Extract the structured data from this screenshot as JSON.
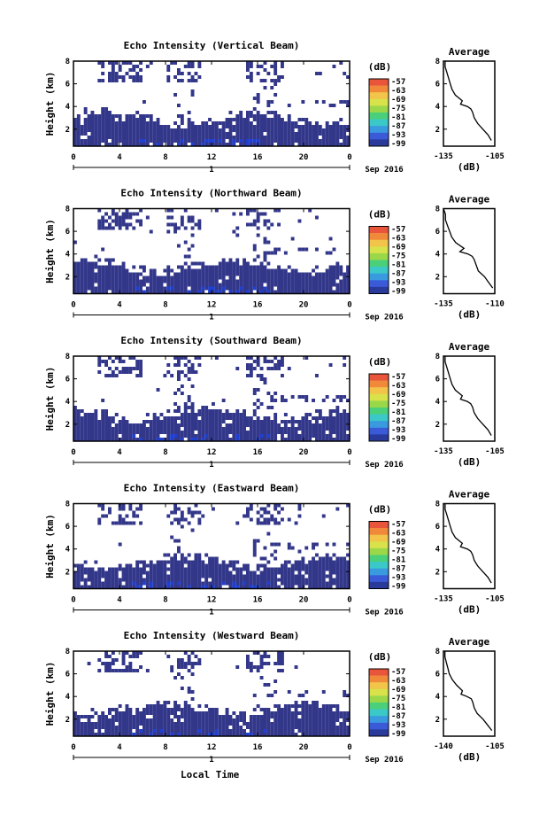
{
  "figure": {
    "xaxis_title": "Local Time",
    "date_label": "Sep 2016",
    "day_label": "1",
    "colorbar_unit": "(dB)",
    "colorbar_ticks": [
      "-57",
      "-63",
      "-69",
      "-75",
      "-81",
      "-87",
      "-93",
      "-99"
    ],
    "colorbar_colors": [
      "#e8553a",
      "#f08a3a",
      "#f2c44a",
      "#d8e24a",
      "#9ad84a",
      "#4ad07a",
      "#3ac8c8",
      "#3a9ae0",
      "#3a5ad8",
      "#2a3a9a"
    ],
    "panel_fill_color": "#33378a",
    "panel_bright_color": "#1f3fd0",
    "x_ticks": [
      "0",
      "4",
      "8",
      "12",
      "16",
      "20",
      "0"
    ],
    "y_ticks": [
      "2",
      "4",
      "6",
      "8"
    ]
  },
  "panels": [
    {
      "title": "Echo Intensity (Vertical Beam)",
      "ylabel": "Height (km)",
      "avg_title": "Average",
      "avg_xlabel": "(dB)",
      "avg_xticks": [
        "-135",
        "-105"
      ]
    },
    {
      "title": "Echo Intensity (Northward Beam)",
      "ylabel": "Height (km)",
      "avg_title": "Average",
      "avg_xlabel": "(dB)",
      "avg_xticks": [
        "-135",
        "-110"
      ]
    },
    {
      "title": "Echo Intensity (Southward Beam)",
      "ylabel": "Height (km)",
      "avg_title": "Average",
      "avg_xlabel": "(dB)",
      "avg_xticks": [
        "-135",
        "-105"
      ]
    },
    {
      "title": "Echo Intensity (Eastward Beam)",
      "ylabel": "Height (km)",
      "avg_title": "Average",
      "avg_xlabel": "(dB)",
      "avg_xticks": [
        "-135",
        "-105"
      ]
    },
    {
      "title": "Echo Intensity (Westward Beam)",
      "ylabel": "Height (km)",
      "avg_title": "Average",
      "avg_xlabel": "(dB)",
      "avg_xticks": [
        "-140",
        "-105"
      ]
    }
  ],
  "chart_data": [
    {
      "type": "heatmap",
      "title": "Echo Intensity (Vertical Beam)",
      "xlabel": "Local Time",
      "ylabel": "Height (km)",
      "xlim": [
        0,
        24
      ],
      "ylim": [
        0.5,
        8
      ],
      "colorbar_range_db": [
        -99,
        -57
      ]
    },
    {
      "type": "line",
      "title": "Average",
      "xlabel": "(dB)",
      "ylabel": "Height (km)",
      "xlim": [
        -135,
        -105
      ],
      "ylim": [
        0.5,
        8
      ],
      "x": [
        -107,
        -109,
        -112,
        -115,
        -117,
        -118,
        -119,
        -121,
        -125,
        -124,
        -128,
        -130,
        -131,
        -132,
        -133,
        -134,
        -134
      ],
      "y": [
        1.0,
        1.5,
        2.0,
        2.5,
        3.0,
        3.5,
        3.8,
        4.0,
        4.2,
        4.5,
        5.0,
        5.5,
        6.0,
        6.5,
        7.0,
        7.5,
        8.0
      ]
    },
    {
      "type": "heatmap",
      "title": "Echo Intensity (Northward Beam)",
      "xlabel": "Local Time",
      "ylabel": "Height (km)",
      "xlim": [
        0,
        24
      ],
      "ylim": [
        0.5,
        8
      ],
      "colorbar_range_db": [
        -99,
        -57
      ]
    },
    {
      "type": "line",
      "title": "Average",
      "xlabel": "(dB)",
      "ylabel": "Height (km)",
      "xlim": [
        -135,
        -110
      ],
      "ylim": [
        0.5,
        8
      ],
      "x": [
        -111,
        -113,
        -115,
        -118,
        -119,
        -120,
        -121,
        -123,
        -127,
        -125,
        -129,
        -131,
        -132,
        -133,
        -134,
        -134,
        -135
      ],
      "y": [
        1.0,
        1.5,
        2.0,
        2.5,
        3.0,
        3.5,
        3.8,
        4.0,
        4.2,
        4.5,
        5.0,
        5.5,
        6.0,
        6.5,
        7.0,
        7.5,
        8.0
      ]
    },
    {
      "type": "heatmap",
      "title": "Echo Intensity (Southward Beam)",
      "xlabel": "Local Time",
      "ylabel": "Height (km)",
      "xlim": [
        0,
        24
      ],
      "ylim": [
        0.5,
        8
      ],
      "colorbar_range_db": [
        -99,
        -57
      ]
    },
    {
      "type": "line",
      "title": "Average",
      "xlabel": "(dB)",
      "ylabel": "Height (km)",
      "xlim": [
        -135,
        -105
      ],
      "ylim": [
        0.5,
        8
      ],
      "x": [
        -107,
        -109,
        -112,
        -115,
        -117,
        -118,
        -119,
        -121,
        -125,
        -124,
        -128,
        -130,
        -131,
        -132,
        -133,
        -134,
        -134
      ],
      "y": [
        1.0,
        1.5,
        2.0,
        2.5,
        3.0,
        3.5,
        3.8,
        4.0,
        4.2,
        4.5,
        5.0,
        5.5,
        6.0,
        6.5,
        7.0,
        7.5,
        8.0
      ]
    },
    {
      "type": "heatmap",
      "title": "Echo Intensity (Eastward Beam)",
      "xlabel": "Local Time",
      "ylabel": "Height (km)",
      "xlim": [
        0,
        24
      ],
      "ylim": [
        0.5,
        8
      ],
      "colorbar_range_db": [
        -99,
        -57
      ]
    },
    {
      "type": "line",
      "title": "Average",
      "xlabel": "(dB)",
      "ylabel": "Height (km)",
      "xlim": [
        -135,
        -105
      ],
      "ylim": [
        0.5,
        8
      ],
      "x": [
        -107,
        -109,
        -112,
        -115,
        -117,
        -118,
        -119,
        -121,
        -125,
        -124,
        -128,
        -130,
        -131,
        -132,
        -133,
        -134,
        -134
      ],
      "y": [
        1.0,
        1.5,
        2.0,
        2.5,
        3.0,
        3.5,
        3.8,
        4.0,
        4.2,
        4.5,
        5.0,
        5.5,
        6.0,
        6.5,
        7.0,
        7.5,
        8.0
      ]
    },
    {
      "type": "heatmap",
      "title": "Echo Intensity (Westward Beam)",
      "xlabel": "Local Time",
      "ylabel": "Height (km)",
      "xlim": [
        0,
        24
      ],
      "ylim": [
        0.5,
        8
      ],
      "colorbar_range_db": [
        -99,
        -57
      ]
    },
    {
      "type": "line",
      "title": "Average",
      "xlabel": "(dB)",
      "ylabel": "Height (km)",
      "xlim": [
        -140,
        -105
      ],
      "ylim": [
        0.5,
        8
      ],
      "x": [
        -107,
        -110,
        -113,
        -117,
        -119,
        -120,
        -121,
        -124,
        -128,
        -127,
        -131,
        -134,
        -136,
        -137,
        -138,
        -139,
        -139
      ],
      "y": [
        1.0,
        1.5,
        2.0,
        2.5,
        3.0,
        3.5,
        3.8,
        4.0,
        4.2,
        4.5,
        5.0,
        5.5,
        6.0,
        6.5,
        7.0,
        7.5,
        8.0
      ]
    }
  ]
}
